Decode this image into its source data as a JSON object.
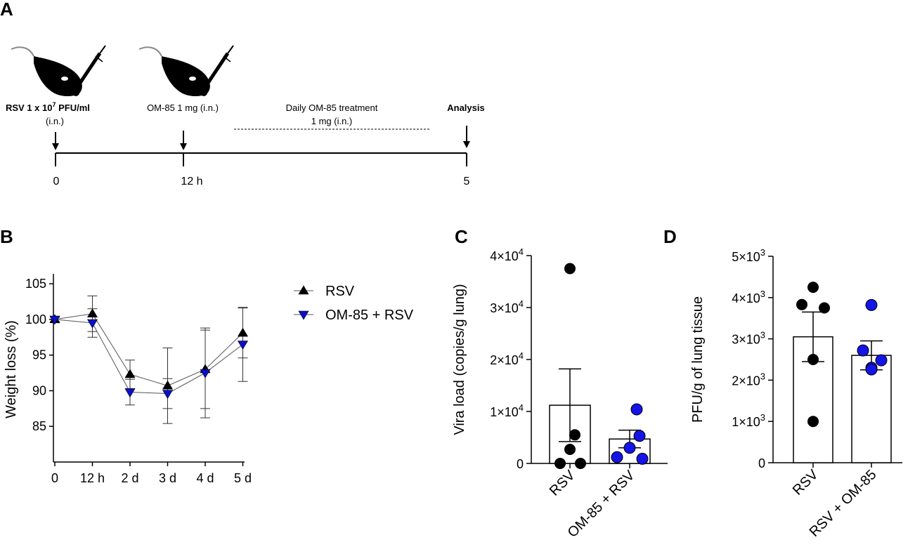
{
  "panels": {
    "a": "A",
    "b": "B",
    "c": "C",
    "d": "D"
  },
  "timeline": {
    "steps": [
      {
        "label": "RSV 1 x 10",
        "superscript": "7",
        "label_suffix": " PFU/ml",
        "sublabel": "(i.n.)"
      },
      {
        "label": "OM-85 1 mg (i.n.)"
      },
      {
        "label": "Daily OM-85 treatment",
        "sublabel": "1 mg (i.n.)"
      },
      {
        "label": "Analysis"
      }
    ],
    "ticks": [
      "0",
      "12 h",
      "5"
    ]
  },
  "colors": {
    "rsv": "#000000",
    "om85": "#0a10c8"
  },
  "chart_data": [
    {
      "id": "B",
      "type": "line",
      "title": "",
      "xlabel": "",
      "ylabel": "Weight loss (%)",
      "categories": [
        "0",
        "12 h",
        "2 d",
        "3 d",
        "4 d",
        "5 d"
      ],
      "ylim": [
        80,
        106
      ],
      "yticks": [
        85,
        90,
        95,
        100,
        105
      ],
      "grid": false,
      "legend_position": "right",
      "series": [
        {
          "name": "RSV",
          "marker": "triangle-up",
          "values": [
            100,
            100.8,
            92.3,
            90.7,
            93.0,
            98.1
          ],
          "errors": [
            0.3,
            2.5,
            2.0,
            5.3,
            5.5,
            3.5
          ]
        },
        {
          "name": "OM-85 + RSV",
          "marker": "triangle-down",
          "values": [
            100,
            99.5,
            89.8,
            89.6,
            92.5,
            96.5
          ],
          "errors": [
            0.3,
            2.0,
            1.8,
            2.1,
            6.3,
            5.2
          ]
        }
      ]
    },
    {
      "id": "C",
      "type": "bar",
      "title": "",
      "xlabel": "",
      "ylabel": "Vira load (copies/g lung)",
      "categories": [
        "RSV",
        "OM-85 + RSV"
      ],
      "ylim": [
        0,
        40000
      ],
      "yticks": [
        0,
        10000,
        20000,
        30000,
        40000
      ],
      "ytick_labels": [
        {
          "base": "0",
          "exp": ""
        },
        {
          "base": "1×10",
          "exp": "4"
        },
        {
          "base": "2×10",
          "exp": "4"
        },
        {
          "base": "3×10",
          "exp": "4"
        },
        {
          "base": "4×10",
          "exp": "4"
        }
      ],
      "means": [
        11200,
        4700
      ],
      "sem": [
        7000,
        1700
      ],
      "points": [
        [
          37500,
          5500,
          2700,
          0,
          0
        ],
        [
          10400,
          5300,
          3000,
          1200,
          900
        ]
      ]
    },
    {
      "id": "D",
      "type": "bar",
      "title": "",
      "xlabel": "",
      "ylabel": "PFU/g of lung tissue",
      "categories": [
        "RSV",
        "RSV + OM-85"
      ],
      "ylim": [
        0,
        5000
      ],
      "yticks": [
        0,
        1000,
        2000,
        3000,
        4000,
        5000
      ],
      "ytick_labels": [
        {
          "base": "0",
          "exp": ""
        },
        {
          "base": "1×10",
          "exp": "3"
        },
        {
          "base": "2×10",
          "exp": "3"
        },
        {
          "base": "3×10",
          "exp": "3"
        },
        {
          "base": "4×10",
          "exp": "3"
        },
        {
          "base": "5×10",
          "exp": "3"
        }
      ],
      "means": [
        3050,
        2600
      ],
      "sem": [
        600,
        350
      ],
      "points": [
        [
          4250,
          3830,
          3750,
          2500,
          1000
        ],
        [
          3820,
          2720,
          2480,
          2300,
          2260
        ]
      ]
    }
  ]
}
